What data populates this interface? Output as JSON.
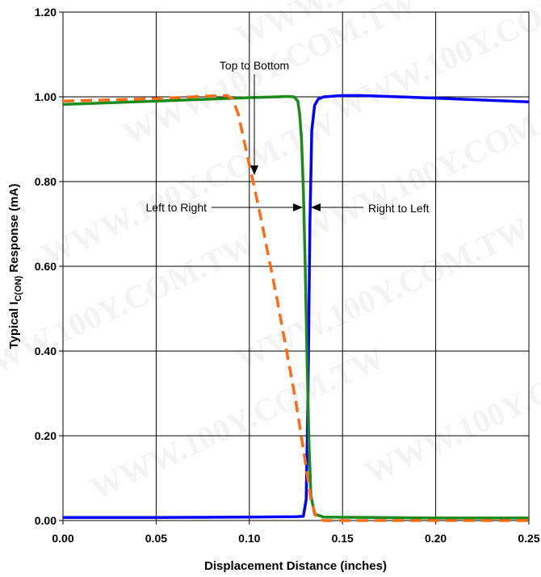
{
  "chart_data": {
    "type": "line",
    "xlabel": "Displacement Distance (inches)",
    "ylabel": {
      "prefix": "Typical I",
      "subscript": "C(ON)",
      "suffix": " Response (mA)"
    },
    "xlim": [
      0,
      0.25
    ],
    "ylim": [
      0,
      1.2
    ],
    "x_ticks": [
      "0.00",
      "0.05",
      "0.10",
      "0.15",
      "0.20",
      "0.25"
    ],
    "y_ticks": [
      "0.00",
      "0.20",
      "0.40",
      "0.60",
      "0.80",
      "1.00",
      "1.20"
    ],
    "grid": true,
    "series": [
      {
        "color": "#0000ff",
        "dash": "solid",
        "x": [
          0.0,
          0.05,
          0.1,
          0.125,
          0.129,
          0.1305,
          0.1315,
          0.1325,
          0.1335,
          0.135,
          0.137,
          0.14,
          0.15,
          0.16,
          0.2,
          0.25
        ],
        "y": [
          0.007,
          0.007,
          0.008,
          0.009,
          0.01,
          0.05,
          0.3,
          0.7,
          0.92,
          0.98,
          0.995,
          1.0,
          1.003,
          1.003,
          0.997,
          0.988
        ]
      },
      {
        "color": "#1a8a1a",
        "dash": "solid",
        "x": [
          0.0,
          0.05,
          0.1,
          0.115,
          0.12,
          0.124,
          0.126,
          0.127,
          0.128,
          0.129,
          0.13,
          0.131,
          0.132,
          0.133,
          0.135,
          0.14,
          0.2,
          0.25
        ],
        "y": [
          0.982,
          0.99,
          0.998,
          1.0,
          1.001,
          1.0,
          0.99,
          0.96,
          0.9,
          0.78,
          0.6,
          0.38,
          0.18,
          0.06,
          0.015,
          0.008,
          0.006,
          0.006
        ],
        "series_label": "Left to Right"
      },
      {
        "color": "#ff6a13",
        "dash": "dashed",
        "x": [
          0.0,
          0.05,
          0.08,
          0.088,
          0.091,
          0.094,
          0.098,
          0.105,
          0.115,
          0.125,
          0.13,
          0.133,
          0.136,
          0.14,
          0.15,
          0.2,
          0.25
        ],
        "y": [
          0.99,
          0.996,
          1.002,
          1.003,
          0.995,
          0.96,
          0.88,
          0.74,
          0.52,
          0.28,
          0.14,
          0.05,
          0.006,
          0.0,
          0.0,
          0.0,
          0.0
        ]
      }
    ],
    "annotations": [
      {
        "text": "Top to Bottom"
      },
      {
        "text": "Left to Right"
      },
      {
        "text": "Right to Left"
      }
    ]
  },
  "watermark": "WWW.100Y.COM.TW"
}
